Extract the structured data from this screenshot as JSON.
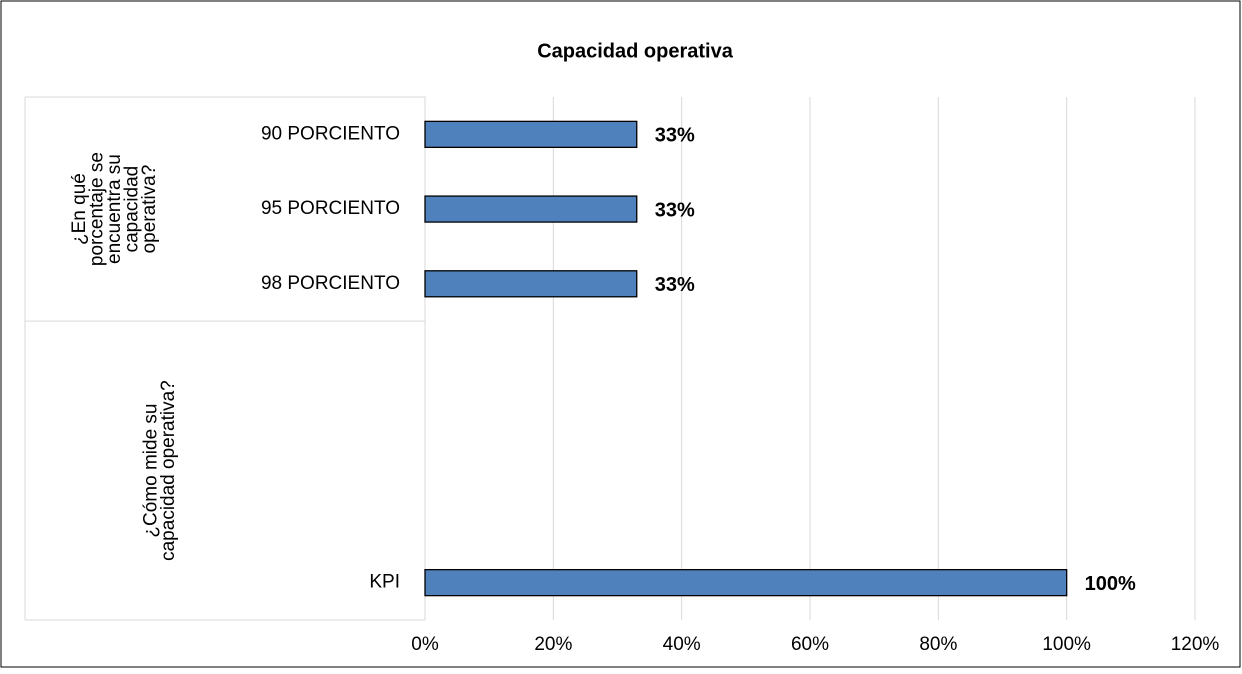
{
  "chart_data": {
    "type": "bar",
    "orientation": "horizontal",
    "title": "Capacidad operativa",
    "color": "#4f81bd",
    "groups": [
      {
        "name": [
          "¿En qué",
          "porcentaje se",
          "encuentra su",
          "capacidad",
          "operativa?"
        ],
        "categories": [
          "90 PORCIENTO",
          "95 PORCIENTO",
          "98 PORCIENTO"
        ],
        "values": [
          33,
          33,
          33
        ],
        "value_labels": [
          "33%",
          "33%",
          "33%"
        ]
      },
      {
        "name": [
          "¿Cómo mide su",
          "capacidad operativa?"
        ],
        "categories": [
          null,
          null,
          null,
          "KPI"
        ],
        "values": [
          null,
          null,
          null,
          100
        ],
        "value_labels": [
          null,
          null,
          null,
          "100%"
        ]
      }
    ],
    "xlim": [
      0,
      120
    ],
    "xticks": [
      {
        "value": 0,
        "label": "0%"
      },
      {
        "value": 20,
        "label": "20%"
      },
      {
        "value": 40,
        "label": "40%"
      },
      {
        "value": 60,
        "label": "60%"
      },
      {
        "value": 80,
        "label": "80%"
      },
      {
        "value": 100,
        "label": "100%"
      },
      {
        "value": 120,
        "label": "120%"
      }
    ],
    "grid": true
  }
}
